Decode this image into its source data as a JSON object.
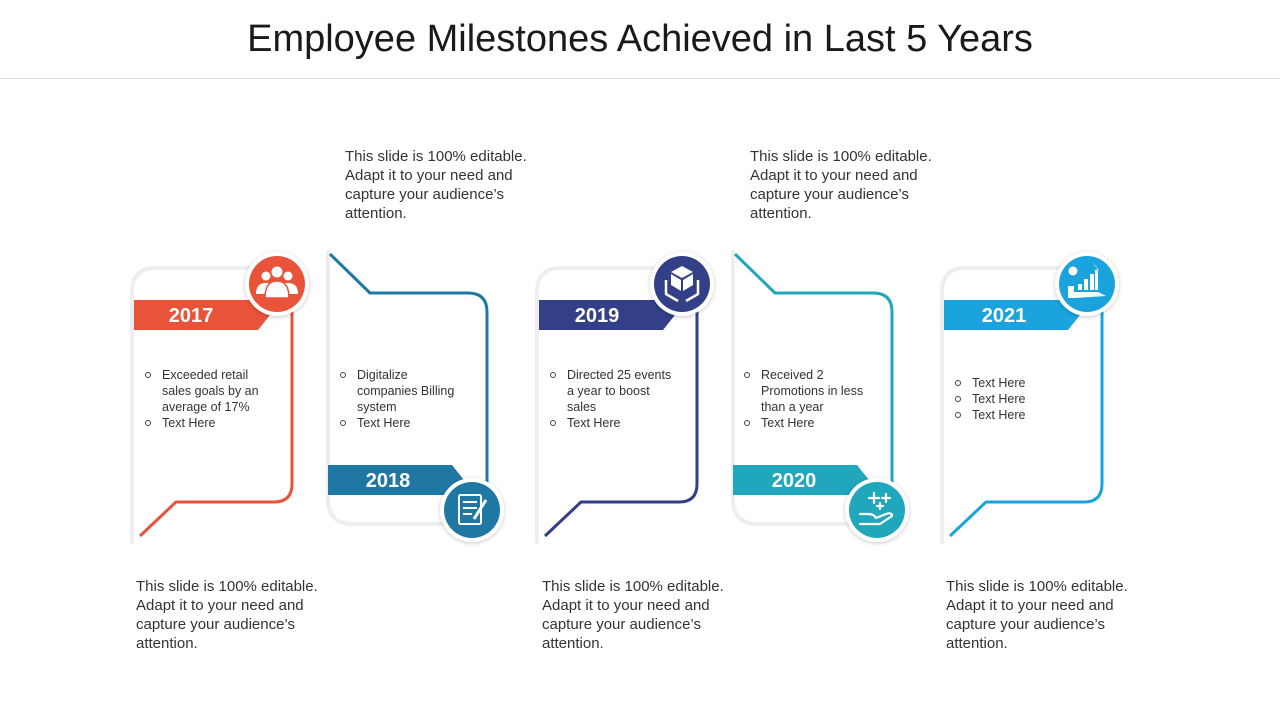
{
  "title": "Employee Milestones Achieved in Last 5 Years",
  "colors": {
    "2017": "#e8533a",
    "2018": "#1f78a4",
    "2019": "#333f86",
    "2020": "#20a7bb",
    "2021": "#1aa3dd"
  },
  "milestones": [
    {
      "year": "2017",
      "icon": "team-icon",
      "description": "This slide is 100% editable. Adapt it to your need and capture your audience’s attention.",
      "bullets": [
        "Exceeded retail sales goals by an average  of 17%",
        "Text Here"
      ]
    },
    {
      "year": "2018",
      "icon": "document-pen-icon",
      "description": "This slide is 100% editable. Adapt it to your need and capture your audience’s attention.",
      "bullets": [
        "Digitalize companies Billing system",
        "Text Here"
      ]
    },
    {
      "year": "2019",
      "icon": "hands-box-icon",
      "description": "This slide is 100% editable. Adapt it to your need and capture your audience’s attention.",
      "bullets": [
        "Directed 25 events a year to boost sales",
        "Text Here"
      ]
    },
    {
      "year": "2020",
      "icon": "hand-sparkle-icon",
      "description": "This slide is 100% editable. Adapt it to your need and capture your audience’s attention.",
      "bullets": [
        "Received  2 Promotions in less than a year",
        "Text Here"
      ]
    },
    {
      "year": "2021",
      "icon": "growth-chart-icon",
      "description": "This slide is 100% editable. Adapt it to your need and capture your audience’s attention.",
      "bullets": [
        "Text Here",
        "Text Here",
        "Text Here"
      ]
    }
  ]
}
